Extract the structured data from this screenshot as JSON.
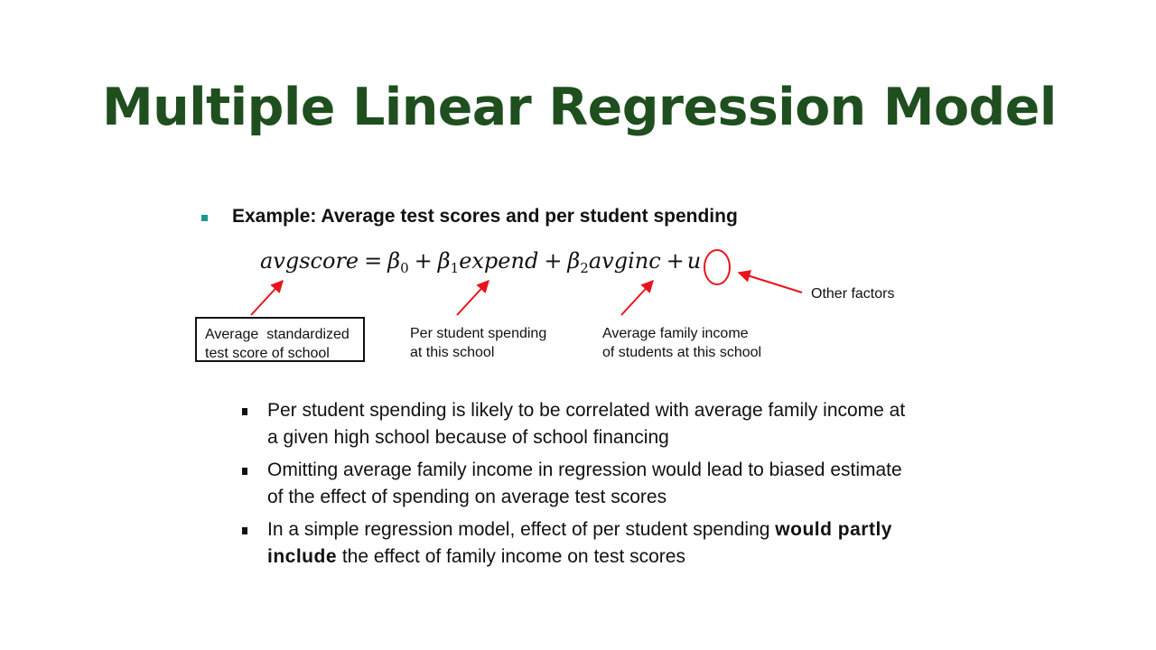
{
  "slide": {
    "title": "Multiple Linear Regression Model"
  },
  "example": {
    "heading": "Example: Average test scores and per student spending",
    "bullet_color": "#1a9a8a"
  },
  "formula": {
    "lhs": "avgscore",
    "equals": "=",
    "beta0": "β",
    "beta0_sub": "0",
    "plus1": "+",
    "beta1": "β",
    "beta1_sub": "1",
    "var1": "expend",
    "plus2": "+",
    "beta2": "β",
    "beta2_sub": "2",
    "var2": "avginc",
    "plus3": "+",
    "error": "u"
  },
  "annotations": {
    "avgscore_line1": "Average  standardized",
    "avgscore_line2": "test score of school",
    "expend_line1": "Per student spending",
    "expend_line2": "at this school",
    "avginc_line1": "Average family income",
    "avginc_line2": "of students at this school",
    "error_label": "Other factors",
    "arrow_color": "#e8141c"
  },
  "points": [
    {
      "text": "Per student spending is likely to be correlated with average family income at a given high school because of school financing"
    },
    {
      "text": "Omitting average family income in regression would lead to biased estimate of the effect of spending on average test scores"
    },
    {
      "text_before": "In a simple regression model, effect of per student spending ",
      "bold": "would partly include",
      "text_after": " the effect of family income on test scores"
    }
  ]
}
